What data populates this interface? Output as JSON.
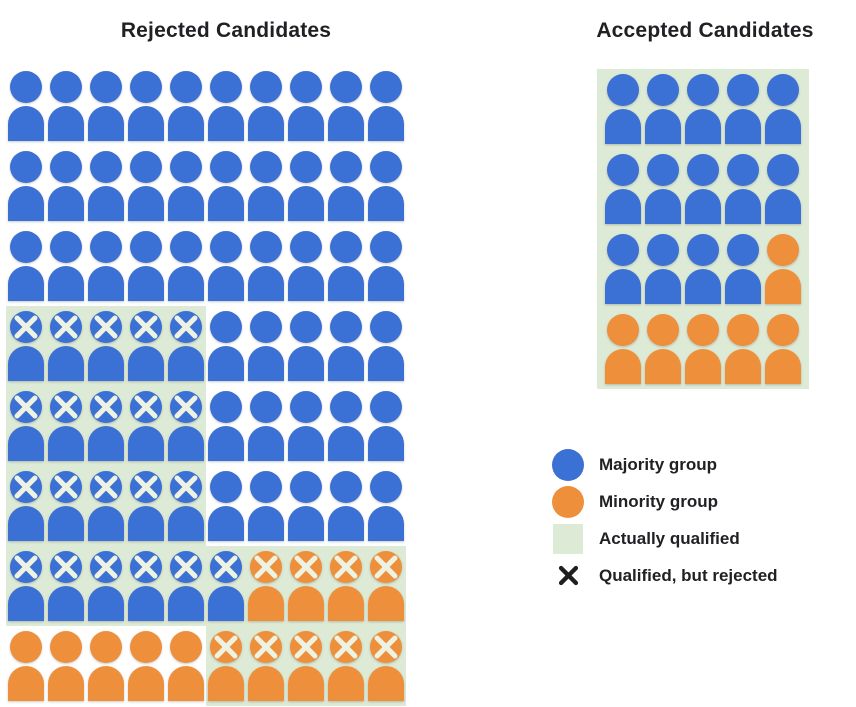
{
  "rejected": {
    "title": "Rejected Candidates",
    "columns": 10,
    "rows": [
      [
        "B",
        "B",
        "B",
        "B",
        "B",
        "B",
        "B",
        "B",
        "B",
        "B"
      ],
      [
        "B",
        "B",
        "B",
        "B",
        "B",
        "B",
        "B",
        "B",
        "B",
        "B"
      ],
      [
        "B",
        "B",
        "B",
        "B",
        "B",
        "B",
        "B",
        "B",
        "B",
        "B"
      ],
      [
        "Bxg",
        "Bxg",
        "Bxg",
        "Bxg",
        "Bxg",
        "B",
        "B",
        "B",
        "B",
        "B"
      ],
      [
        "Bxg",
        "Bxg",
        "Bxg",
        "Bxg",
        "Bxg",
        "B",
        "B",
        "B",
        "B",
        "B"
      ],
      [
        "Bxg",
        "Bxg",
        "Bxg",
        "Bxg",
        "Bxg",
        "B",
        "B",
        "B",
        "B",
        "B"
      ],
      [
        "Bxg",
        "Bxg",
        "Bxg",
        "Bxg",
        "Bxg",
        "Bxg",
        "Oxg",
        "Oxg",
        "Oxg",
        "Oxg"
      ],
      [
        "O",
        "O",
        "O",
        "O",
        "O",
        "Oxg",
        "Oxg",
        "Oxg",
        "Oxg",
        "Oxg"
      ]
    ]
  },
  "accepted": {
    "title": "Accepted Candidates",
    "columns": 5,
    "rows": [
      [
        "B",
        "B",
        "B",
        "B",
        "B"
      ],
      [
        "B",
        "B",
        "B",
        "B",
        "B"
      ],
      [
        "B",
        "B",
        "B",
        "B",
        "O"
      ],
      [
        "O",
        "O",
        "O",
        "O",
        "O"
      ]
    ]
  },
  "legend": {
    "items": [
      {
        "icon": "majority-circle",
        "label": "Majority group"
      },
      {
        "icon": "minority-circle",
        "label": "Minority group"
      },
      {
        "icon": "qualified-square",
        "label": "Actually qualified"
      },
      {
        "icon": "rejected-cross",
        "label": "Qualified, but rejected"
      }
    ]
  },
  "colors": {
    "majority": "#3B70D4",
    "minority": "#EE8F3C",
    "qualified_bg": "#DDEAD5",
    "person_cross": "#EDF2E1",
    "legend_cross": "#1F1F1F",
    "text": "#202124",
    "background": "#FFFFFF"
  }
}
